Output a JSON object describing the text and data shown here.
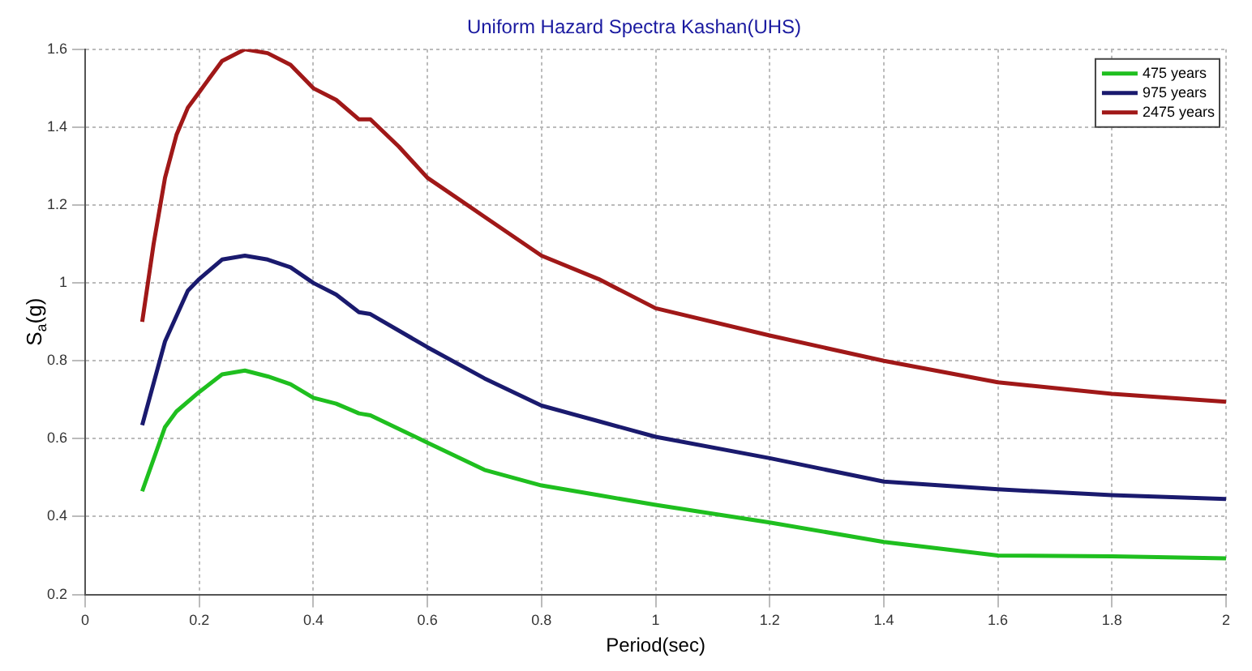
{
  "chart_data": {
    "type": "line",
    "title": "Uniform Hazard Spectra Kashan(UHS)",
    "xlabel": "Period(sec)",
    "ylabel": "S$_{a}$(g)",
    "xlim": [
      0,
      2
    ],
    "xticks": [
      0,
      0.2,
      0.4,
      0.6,
      0.8,
      1,
      1.2,
      1.4,
      1.6,
      1.8,
      2
    ],
    "ylim": [
      0.2,
      1.6
    ],
    "yticks": [
      0.2,
      0.4,
      0.6,
      0.8,
      1,
      1.2,
      1.4,
      1.6
    ],
    "grid": true,
    "legend": "top right",
    "marker": "none",
    "line_style": "solid",
    "series": [
      {
        "name": "475 years",
        "color": "#1fbf1f",
        "x": [
          0.1,
          0.14,
          0.16,
          0.2,
          0.24,
          0.28,
          0.32,
          0.36,
          0.4,
          0.44,
          0.48,
          0.5,
          0.6,
          0.7,
          0.8,
          0.9,
          1.0,
          1.2,
          1.4,
          1.6,
          1.8,
          2.0
        ],
        "values": [
          0.465,
          0.63,
          0.67,
          0.72,
          0.765,
          0.775,
          0.76,
          0.74,
          0.705,
          0.69,
          0.665,
          0.66,
          0.59,
          0.52,
          0.48,
          0.455,
          0.43,
          0.385,
          0.335,
          0.3,
          0.298,
          0.293
        ]
      },
      {
        "name": "975 years",
        "color": "#1a1a6e",
        "x": [
          0.1,
          0.14,
          0.18,
          0.2,
          0.24,
          0.28,
          0.32,
          0.36,
          0.4,
          0.44,
          0.48,
          0.5,
          0.6,
          0.7,
          0.8,
          0.9,
          1.0,
          1.2,
          1.4,
          1.6,
          1.8,
          2.0
        ],
        "values": [
          0.635,
          0.85,
          0.98,
          1.01,
          1.06,
          1.07,
          1.06,
          1.04,
          1.0,
          0.97,
          0.925,
          0.92,
          0.835,
          0.755,
          0.685,
          0.645,
          0.605,
          0.55,
          0.49,
          0.47,
          0.455,
          0.445
        ]
      },
      {
        "name": "2475 years",
        "color": "#a01818",
        "x": [
          0.1,
          0.12,
          0.14,
          0.16,
          0.18,
          0.2,
          0.24,
          0.28,
          0.32,
          0.36,
          0.4,
          0.44,
          0.48,
          0.5,
          0.55,
          0.6,
          0.7,
          0.8,
          0.9,
          1.0,
          1.2,
          1.4,
          1.6,
          1.8,
          2.0
        ],
        "values": [
          0.9,
          1.1,
          1.27,
          1.38,
          1.45,
          1.49,
          1.57,
          1.6,
          1.59,
          1.56,
          1.5,
          1.47,
          1.42,
          1.42,
          1.35,
          1.27,
          1.17,
          1.07,
          1.01,
          0.935,
          0.865,
          0.8,
          0.745,
          0.715,
          0.695
        ]
      }
    ]
  }
}
